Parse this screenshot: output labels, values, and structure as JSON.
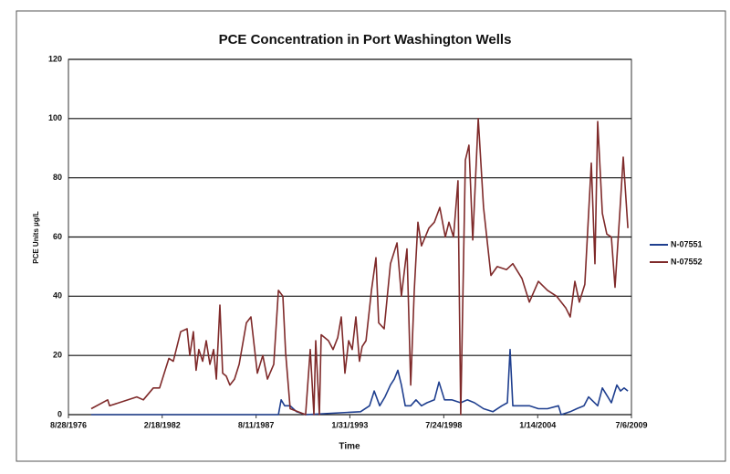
{
  "chart_data": {
    "type": "line",
    "title": "PCE Concentration in Port Washington Wells",
    "x_label": "Time",
    "y_label": "PCE Units µg/L",
    "xlim": [
      1976.66,
      2009.51
    ],
    "xticks": [
      {
        "value": 1976.66,
        "label": "8/28/1976"
      },
      {
        "value": 1982.13,
        "label": "2/18/1982"
      },
      {
        "value": 1987.61,
        "label": "8/11/1987"
      },
      {
        "value": 1993.08,
        "label": "1/31/1993"
      },
      {
        "value": 1998.56,
        "label": "7/24/1998"
      },
      {
        "value": 2004.04,
        "label": "1/14/2004"
      },
      {
        "value": 2009.51,
        "label": "7/6/2009"
      }
    ],
    "ylim": [
      0,
      120
    ],
    "yticks": [
      0,
      20,
      40,
      60,
      80,
      100,
      120
    ],
    "grid": true,
    "legend": "right",
    "series": [
      {
        "name": "N-07551",
        "color": "#1f3f8f",
        "x": [
          1977.99,
          1988.91,
          1989.07,
          1989.28,
          1989.6,
          1989.97,
          1990.5,
          1993.7,
          1994.23,
          1994.5,
          1994.82,
          1995.13,
          1995.45,
          1995.67,
          1995.88,
          1996.09,
          1996.31,
          1996.63,
          1996.94,
          1997.26,
          1997.58,
          1998.01,
          1998.28,
          1998.6,
          1999.02,
          1999.55,
          1999.93,
          2000.35,
          2000.88,
          2001.42,
          2001.95,
          2002.27,
          2002.43,
          2002.59,
          2003.01,
          2003.55,
          2004.08,
          2004.61,
          2005.25,
          2005.41,
          2005.94,
          2006.32,
          2006.74,
          2007.01,
          2007.54,
          2007.81,
          2008.13,
          2008.34,
          2008.66,
          2008.87,
          2009.08,
          2009.3
        ],
        "values": [
          0,
          0,
          5,
          3,
          3,
          1,
          0,
          1,
          3,
          8,
          3,
          6,
          10,
          12,
          15,
          10,
          3,
          3,
          5,
          3,
          4,
          5,
          11,
          5,
          5,
          4,
          5,
          4,
          2,
          1,
          3,
          4,
          22,
          3,
          3,
          3,
          2,
          2,
          3,
          0,
          1,
          2,
          3,
          6,
          3,
          9,
          6,
          4,
          10,
          8,
          9,
          8
        ]
      },
      {
        "name": "N-07552",
        "color": "#7f2a2a",
        "x": [
          1977.99,
          1978.95,
          1979.06,
          1980.65,
          1981.03,
          1981.61,
          1981.98,
          1982.52,
          1982.78,
          1983.21,
          1983.58,
          1983.74,
          1983.95,
          1984.11,
          1984.27,
          1984.49,
          1984.7,
          1984.91,
          1985.13,
          1985.29,
          1985.5,
          1985.66,
          1985.87,
          1986.08,
          1986.35,
          1986.62,
          1987.04,
          1987.31,
          1987.68,
          1988.0,
          1988.27,
          1988.64,
          1988.91,
          1989.17,
          1989.33,
          1989.6,
          1990.5,
          1990.77,
          1990.98,
          1991.09,
          1991.3,
          1991.41,
          1991.83,
          1992.1,
          1992.37,
          1992.58,
          1992.79,
          1993.01,
          1993.22,
          1993.43,
          1993.64,
          1993.8,
          1994.02,
          1994.34,
          1994.6,
          1994.76,
          1995.08,
          1995.45,
          1995.83,
          1996.09,
          1996.41,
          1996.63,
          1996.84,
          1997.05,
          1997.26,
          1997.48,
          1997.69,
          1998.01,
          1998.33,
          1998.65,
          1998.86,
          1999.13,
          1999.39,
          1999.55,
          1999.82,
          2000.03,
          2000.25,
          2000.57,
          2000.88,
          2001.31,
          2001.68,
          2002.22,
          2002.59,
          2002.91,
          2003.12,
          2003.55,
          2004.08,
          2004.61,
          2005.14,
          2005.68,
          2005.94,
          2006.21,
          2006.47,
          2006.79,
          2007.17,
          2007.38,
          2007.54,
          2007.81,
          2008.07,
          2008.34,
          2008.55,
          2008.82,
          2009.03,
          2009.3
        ],
        "values": [
          2,
          5,
          3,
          6,
          5,
          9,
          9,
          19,
          18,
          28,
          29,
          20,
          28,
          15,
          22,
          18,
          25,
          17,
          22,
          12,
          37,
          14,
          13,
          10,
          12,
          17,
          31,
          33,
          14,
          20,
          12,
          17,
          42,
          40,
          21,
          2,
          0,
          22,
          0,
          25,
          0,
          27,
          25,
          22,
          26,
          33,
          14,
          25,
          22,
          33,
          18,
          23,
          25,
          42,
          53,
          31,
          29,
          51,
          58,
          40,
          56,
          10,
          42,
          65,
          57,
          60,
          63,
          65,
          70,
          60,
          65,
          60,
          79,
          0,
          86,
          91,
          59,
          100,
          70,
          47,
          50,
          49,
          51,
          48,
          46,
          38,
          45,
          42,
          40,
          36,
          33,
          45,
          38,
          44,
          85,
          51,
          99,
          68,
          61,
          60,
          43,
          67,
          87,
          63
        ]
      }
    ]
  }
}
